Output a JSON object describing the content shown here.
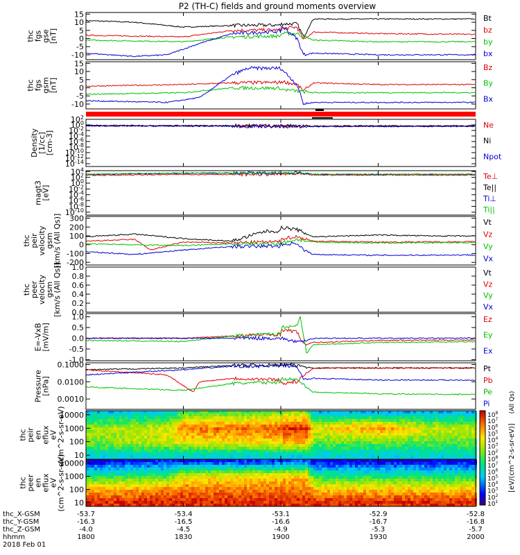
{
  "title": "P2 (TH-C) fields and ground moments overview",
  "colors": {
    "black": "#000000",
    "red": "#e00000",
    "green": "#00c000",
    "blue": "#0000d0"
  },
  "chart_data": [
    {
      "type": "line",
      "panel": "fgs-gse",
      "ylabel": [
        "thc",
        "fgs",
        "gse",
        "[nT]"
      ],
      "yticks": [
        "15",
        "10",
        "5",
        "0",
        "-5",
        "-10"
      ],
      "ylim": [
        -13,
        16
      ],
      "legend": [
        "Bt",
        "bz",
        "by",
        "bx"
      ],
      "legend_colors": [
        "black",
        "red",
        "green",
        "blue"
      ],
      "series": [
        {
          "name": "Bt",
          "color": "black",
          "x": [
            1800,
            1815,
            1830,
            1845,
            1900,
            1905,
            1907,
            1910,
            1930,
            1945,
            2000
          ],
          "y": [
            11,
            10,
            7,
            8,
            9,
            9,
            1,
            12,
            12,
            12,
            12
          ]
        },
        {
          "name": "bz",
          "color": "red",
          "x": [
            1800,
            1830,
            1845,
            1900,
            1905,
            1907,
            1910,
            1930,
            2000
          ],
          "y": [
            2,
            1,
            5,
            6,
            7,
            -1,
            4,
            3,
            2
          ]
        },
        {
          "name": "by",
          "color": "green",
          "x": [
            1800,
            1830,
            1845,
            1900,
            1905,
            1910,
            1930,
            2000
          ],
          "y": [
            -1,
            -2,
            1,
            3,
            3,
            -1,
            -2,
            -2
          ]
        },
        {
          "name": "bx",
          "color": "blue",
          "x": [
            1800,
            1815,
            1825,
            1835,
            1845,
            1900,
            1905,
            1907,
            1910,
            1930,
            2000
          ],
          "y": [
            -9,
            -11,
            -10,
            -3,
            3,
            8,
            0,
            -10,
            -9,
            -10,
            -10
          ]
        }
      ]
    },
    {
      "type": "line",
      "panel": "fgs-gsm",
      "ylabel": [
        "thc",
        "fgs",
        "gsm",
        "[nT]"
      ],
      "yticks": [
        "15",
        "10",
        "5",
        "0",
        "-5",
        "-10"
      ],
      "ylim": [
        -13,
        16
      ],
      "legend": [
        "Bz",
        "By",
        "Bx"
      ],
      "legend_colors": [
        "red",
        "green",
        "blue"
      ],
      "series": [
        {
          "name": "Bz",
          "color": "red",
          "x": [
            1800,
            1830,
            1845,
            1900,
            1905,
            1907,
            1910,
            1930,
            2000
          ],
          "y": [
            1,
            2,
            3,
            4,
            2,
            -2,
            3,
            2,
            2
          ]
        },
        {
          "name": "By",
          "color": "green",
          "x": [
            1800,
            1830,
            1845,
            1900,
            1905,
            1910,
            1930,
            2000
          ],
          "y": [
            -4,
            -3,
            0,
            -1,
            -2,
            -3,
            -3,
            -3
          ]
        },
        {
          "name": "Bx",
          "color": "blue",
          "x": [
            1800,
            1825,
            1835,
            1845,
            1850,
            1900,
            1905,
            1907,
            1910,
            1930,
            2000
          ],
          "y": [
            -8,
            -9,
            -6,
            8,
            12,
            12,
            2,
            -10,
            -9,
            -9,
            -9
          ]
        }
      ]
    },
    {
      "type": "line",
      "panel": "density",
      "ylabel": [
        "Density",
        "[1/cc]",
        "[cm-3]"
      ],
      "yticks": [
        "10^2",
        "10^0",
        "10^-2",
        "10^-4",
        "10^-6",
        "10^-8",
        "10^-10",
        "10^-12",
        "10^-14"
      ],
      "ylim": [
        -15,
        2
      ],
      "log": true,
      "legend": [
        "Ne",
        "Ni",
        "Npot"
      ],
      "legend_colors": [
        "red",
        "black",
        "blue"
      ],
      "series": [
        {
          "name": "Ne",
          "color": "red",
          "x": [
            1800,
            1900,
            2000
          ],
          "y": [
            -0.3,
            -0.5,
            -0.4
          ]
        },
        {
          "name": "Ni",
          "color": "black",
          "x": [
            1800,
            1900,
            2000
          ],
          "y": [
            -0.2,
            -0.4,
            -0.3
          ]
        },
        {
          "name": "Npot",
          "color": "blue",
          "x": [
            1800,
            1900,
            2000
          ],
          "y": [
            -0.4,
            -0.6,
            -0.5
          ]
        }
      ]
    },
    {
      "type": "line",
      "panel": "temperature",
      "ylabel": [
        "magt3",
        "[eV]"
      ],
      "yticks": [
        "10^4",
        "10^2",
        "10^0",
        "10^-2",
        "10^-4",
        "10^-6",
        "10^-8",
        "10^-10"
      ],
      "ylim": [
        -11,
        4.3
      ],
      "log": true,
      "legend": [
        "Te⊥",
        "Te||",
        "Ti⊥",
        "Ti||"
      ],
      "legend_colors": [
        "red",
        "black",
        "blue",
        "green"
      ],
      "series": [
        {
          "name": "Te⊥",
          "color": "red",
          "x": [
            1800,
            1830,
            1907,
            1910,
            2000
          ],
          "y": [
            2.7,
            3.0,
            3.1,
            2.8,
            2.8
          ]
        },
        {
          "name": "Ti⊥",
          "color": "blue",
          "x": [
            1800,
            1830,
            1907,
            1910,
            2000
          ],
          "y": [
            3.0,
            3.4,
            3.5,
            3.0,
            3.0
          ]
        },
        {
          "name": "Ti||",
          "color": "green",
          "x": [
            1800,
            1830,
            1907,
            1910,
            2000
          ],
          "y": [
            3.1,
            3.5,
            3.6,
            3.1,
            3.1
          ]
        }
      ]
    },
    {
      "type": "line",
      "panel": "peir-velocity",
      "ylabel": [
        "thc",
        "peir",
        "velocity",
        "gsm",
        "[km/s (All Qs)]"
      ],
      "yticks": [
        "300",
        "200",
        "100",
        "0",
        "-100",
        "-200"
      ],
      "ylim": [
        -230,
        320
      ],
      "legend": [
        "Vt",
        "Vz",
        "Vy",
        "Vx"
      ],
      "legend_colors": [
        "black",
        "red",
        "green",
        "blue"
      ],
      "series": [
        {
          "name": "Vt",
          "color": "black",
          "x": [
            1800,
            1815,
            1830,
            1845,
            1855,
            1900,
            1905,
            1910,
            1930,
            1945,
            2000
          ],
          "y": [
            90,
            120,
            70,
            40,
            150,
            200,
            170,
            90,
            110,
            100,
            90
          ]
        },
        {
          "name": "Vz",
          "color": "red",
          "x": [
            1800,
            1815,
            1820,
            1830,
            1845,
            1900,
            1905,
            1910,
            1930,
            2000
          ],
          "y": [
            40,
            60,
            -60,
            30,
            20,
            70,
            90,
            40,
            30,
            40
          ]
        },
        {
          "name": "Vy",
          "color": "green",
          "x": [
            1800,
            1830,
            1845,
            1900,
            1905,
            1910,
            1930,
            2000
          ],
          "y": [
            10,
            -10,
            10,
            20,
            60,
            30,
            20,
            30
          ]
        },
        {
          "name": "Vx",
          "color": "blue",
          "x": [
            1800,
            1815,
            1830,
            1845,
            1900,
            1905,
            1907,
            1910,
            1930,
            2000
          ],
          "y": [
            -80,
            -110,
            -60,
            -20,
            0,
            20,
            -60,
            -110,
            -120,
            -110
          ]
        }
      ]
    },
    {
      "type": "line",
      "panel": "peer-velocity",
      "ylabel": [
        "thc",
        "peer",
        "velocity",
        "gsm",
        "[km/s (All Qs)]"
      ],
      "yticks": [
        "1.0",
        "0.8",
        "0.6",
        "0.4",
        "0.2",
        "0.0"
      ],
      "ylim": [
        0,
        1
      ],
      "legend": [
        "Vt",
        "Vz",
        "Vy",
        "Vx"
      ],
      "legend_colors": [
        "black",
        "red",
        "green",
        "blue"
      ],
      "series": []
    },
    {
      "type": "line",
      "panel": "e-field",
      "ylabel": [
        "E=-VxB",
        "[mV/m]"
      ],
      "yticks": [
        "1.0",
        "0.5",
        "0.0",
        "-0.5",
        "-1.0"
      ],
      "ylim": [
        -1.05,
        1.15
      ],
      "legend": [
        "Ez",
        "Ey",
        "Ex"
      ],
      "legend_colors": [
        "red",
        "green",
        "blue"
      ],
      "series": [
        {
          "name": "Ez",
          "color": "red",
          "x": [
            1800,
            1830,
            1845,
            1900,
            1905,
            1907,
            1910,
            1930,
            2000
          ],
          "y": [
            0.0,
            0.0,
            0.1,
            0.4,
            0.3,
            -0.3,
            -0.2,
            -0.1,
            -0.05
          ]
        },
        {
          "name": "Ey",
          "color": "green",
          "x": [
            1800,
            1830,
            1845,
            1900,
            1905,
            1906,
            1908,
            1910,
            1930,
            2000
          ],
          "y": [
            -0.1,
            -0.15,
            0.1,
            0.5,
            0.6,
            1.0,
            -0.7,
            -0.3,
            -0.2,
            -0.1
          ]
        },
        {
          "name": "Ex",
          "color": "blue",
          "x": [
            1800,
            1830,
            1900,
            1906,
            1910,
            2000
          ],
          "y": [
            0.0,
            0.0,
            0.0,
            -0.2,
            0.0,
            0.0
          ]
        }
      ]
    },
    {
      "type": "line",
      "panel": "pressure",
      "ylabel": [
        "Pressure",
        "[nPa]"
      ],
      "yticks": [
        "0.1000",
        "0.0100",
        "0.0010"
      ],
      "ylim": [
        -3.6,
        -0.9
      ],
      "log": true,
      "legend": [
        "Pt",
        "Pb",
        "Pe",
        "Pi"
      ],
      "legend_colors": [
        "black",
        "red",
        "green",
        "blue"
      ],
      "series": [
        {
          "name": "Pt",
          "color": "black",
          "x": [
            1800,
            1830,
            1845,
            1900,
            1905,
            1910,
            2000
          ],
          "y": [
            -1.3,
            -1.2,
            -1.05,
            -1.0,
            -1.05,
            -1.2,
            -1.2
          ]
        },
        {
          "name": "Pb",
          "color": "red",
          "x": [
            1800,
            1825,
            1833,
            1835,
            1845,
            1900,
            1905,
            1910,
            2000
          ],
          "y": [
            -1.3,
            -1.6,
            -2.6,
            -2.0,
            -1.8,
            -2.1,
            -2.0,
            -1.2,
            -1.2
          ]
        },
        {
          "name": "Pe",
          "color": "green",
          "x": [
            1800,
            1830,
            1845,
            1900,
            1905,
            1910,
            1930,
            2000
          ],
          "y": [
            -2.3,
            -2.5,
            -2.1,
            -1.8,
            -1.9,
            -2.6,
            -2.7,
            -2.8
          ]
        },
        {
          "name": "Pi",
          "color": "blue",
          "x": [
            1800,
            1830,
            1845,
            1900,
            1905,
            1907,
            1910,
            1930,
            2000
          ],
          "y": [
            -1.6,
            -1.3,
            -1.1,
            -1.05,
            -1.1,
            -1.9,
            -1.8,
            -1.9,
            -1.9
          ]
        }
      ]
    },
    {
      "type": "heatmap",
      "panel": "peir-spectrogram",
      "ylabel": [
        "thc",
        "peir",
        "en",
        "eflux",
        "eV",
        "(cm^2-s-sr-eV)"
      ],
      "yticks": [
        "10000",
        "1000",
        "100",
        "10"
      ],
      "ylim": [
        5,
        20000
      ],
      "log": true,
      "note_levels": "color level along time at representative energies",
      "bands": [
        {
          "energy": 10000,
          "x": [
            1800,
            1825,
            1830,
            1900,
            1907,
            1910,
            2000
          ],
          "level": [
            0.35,
            0.4,
            0.55,
            0.65,
            0.65,
            0.35,
            0.35
          ]
        },
        {
          "energy": 1000,
          "x": [
            1800,
            1825,
            1830,
            1900,
            1907,
            1910,
            1930,
            1945,
            2000
          ],
          "level": [
            0.6,
            0.65,
            0.85,
            0.95,
            0.95,
            0.7,
            0.85,
            0.65,
            0.6
          ]
        },
        {
          "energy": 100,
          "x": [
            1800,
            1830,
            1900,
            1907,
            1910,
            2000
          ],
          "level": [
            0.55,
            0.7,
            0.8,
            0.8,
            0.55,
            0.55
          ]
        },
        {
          "energy": 10,
          "x": [
            1800,
            2000
          ],
          "level": [
            0.35,
            0.35
          ]
        }
      ]
    },
    {
      "type": "heatmap",
      "panel": "peer-spectrogram",
      "ylabel": [
        "thc",
        "peer",
        "en",
        "eflux",
        "eV",
        "(cm^2-s-sr-eV)"
      ],
      "yticks": [
        "10000",
        "1000",
        "100",
        "10"
      ],
      "ylim": [
        5,
        20000
      ],
      "log": true,
      "bands": [
        {
          "energy": 10000,
          "x": [
            1800,
            1830,
            1900,
            1907,
            1910,
            2000
          ],
          "level": [
            0.15,
            0.2,
            0.25,
            0.25,
            0.15,
            0.15
          ]
        },
        {
          "energy": 1000,
          "x": [
            1800,
            1825,
            1830,
            1900,
            1907,
            1910,
            2000
          ],
          "level": [
            0.45,
            0.5,
            0.7,
            0.75,
            0.75,
            0.45,
            0.45
          ]
        },
        {
          "energy": 100,
          "x": [
            1800,
            1830,
            1900,
            1907,
            1910,
            2000
          ],
          "level": [
            0.75,
            0.85,
            0.85,
            0.85,
            0.75,
            0.75
          ]
        },
        {
          "energy": 10,
          "x": [
            1800,
            2000
          ],
          "level": [
            0.95,
            0.95
          ]
        }
      ]
    }
  ],
  "colorbar": {
    "ticks": [
      "10^8",
      "10^7",
      "10^6",
      "10^5",
      "10^4",
      "10^3",
      "10^2",
      "10^8",
      "10^7",
      "10^6",
      "10^5",
      "10^4",
      "10^3",
      "10^2",
      "10^1"
    ],
    "label": "[eV/(cm^2-s-sr-eV)]",
    "label2": "(All Qs)"
  },
  "xaxis": {
    "rows": [
      {
        "label": "thc_X-GSM",
        "values": [
          "-53.7",
          "-53.4",
          "-53.1",
          "-52.9",
          "-52.8"
        ]
      },
      {
        "label": "thc_Y-GSM",
        "values": [
          "-16.3",
          "-16.5",
          "-16.6",
          "-16.7",
          "-16.8"
        ]
      },
      {
        "label": "thc_Z-GSM",
        "values": [
          "-4.0",
          "-4.5",
          "-4.9",
          "-5.3",
          "-5.7"
        ]
      },
      {
        "label": "hhmm",
        "values": [
          "1800",
          "1830",
          "1900",
          "1930",
          "2000"
        ]
      }
    ],
    "date": "2018 Feb 01",
    "tick_times": [
      1800,
      1830,
      1900,
      1930,
      2000
    ]
  }
}
